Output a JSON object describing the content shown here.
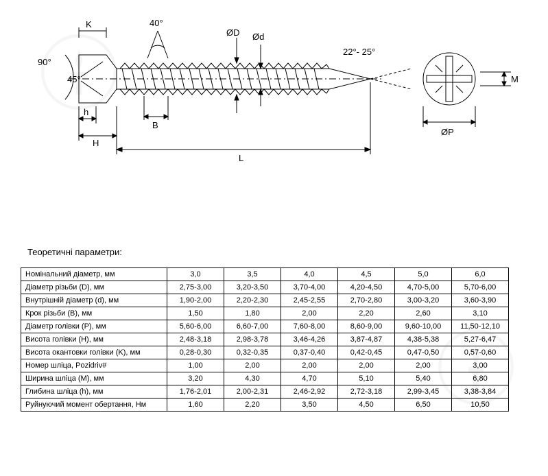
{
  "diagram": {
    "type": "technical-drawing",
    "stroke_color": "#000000",
    "stroke_width": 1,
    "labels": {
      "angle_head": "90°",
      "angle_bevel": "45°",
      "angle_thread": "40°",
      "angle_tip": "22°- 25°",
      "K": "K",
      "h": "h",
      "H": "H",
      "B": "B",
      "L": "L",
      "OD": "ØD",
      "Od": "Ød",
      "OP": "ØP",
      "M": "M"
    },
    "label_fontsize": 13
  },
  "caption": "Теоретичні параметри:",
  "table": {
    "columns": [
      "3,0",
      "3,5",
      "4,0",
      "4,5",
      "5,0",
      "6,0"
    ],
    "rows": [
      {
        "label": "Номінальний діаметр, мм",
        "vals": [
          "3,0",
          "3,5",
          "4,0",
          "4,5",
          "5,0",
          "6,0"
        ]
      },
      {
        "label": "Діаметр різьби (D), мм",
        "vals": [
          "2,75-3,00",
          "3,20-3,50",
          "3,70-4,00",
          "4,20-4,50",
          "4,70-5,00",
          "5,70-6,00"
        ]
      },
      {
        "label": "Внутрішній діаметр (d), мм",
        "vals": [
          "1,90-2,00",
          "2,20-2,30",
          "2,45-2,55",
          "2,70-2,80",
          "3,00-3,20",
          "3,60-3,90"
        ]
      },
      {
        "label": "Крок різьби (B), мм",
        "vals": [
          "1,50",
          "1,80",
          "2,00",
          "2,20",
          "2,60",
          "3,10"
        ]
      },
      {
        "label": "Діаметр голівки (P), мм",
        "vals": [
          "5,60-6,00",
          "6,60-7,00",
          "7,60-8,00",
          "8,60-9,00",
          "9,60-10,00",
          "11,50-12,10"
        ]
      },
      {
        "label": "Висота голівки (H), мм",
        "vals": [
          "2,48-3,18",
          "2,98-3,78",
          "3,46-4,26",
          "3,87-4,87",
          "4,38-5,38",
          "5,27-6,47"
        ]
      },
      {
        "label": "Висота окантовки голівки (K), мм",
        "vals": [
          "0,28-0,30",
          "0,32-0,35",
          "0,37-0,40",
          "0,42-0,45",
          "0,47-0,50",
          "0,57-0,60"
        ]
      },
      {
        "label": "Номер шліца, Pozidriv#",
        "vals": [
          "1,00",
          "2,00",
          "2,00",
          "2,00",
          "2,00",
          "3,00"
        ]
      },
      {
        "label": "Ширина шліца (M), мм",
        "vals": [
          "3,20",
          "4,30",
          "4,70",
          "5,10",
          "5,40",
          "6,80"
        ]
      },
      {
        "label": "Глибина шліца (h), мм",
        "vals": [
          "1,76-2,01",
          "2,00-2,31",
          "2,46-2,92",
          "2,72-3,18",
          "2,99-3,45",
          "3,38-3,84"
        ]
      },
      {
        "label": "Руйнуючий момент обертання, Нм",
        "vals": [
          "1,60",
          "2,20",
          "3,50",
          "4,50",
          "6,50",
          "10,50"
        ]
      }
    ],
    "border_color": "#000000",
    "fontsize": 11
  }
}
